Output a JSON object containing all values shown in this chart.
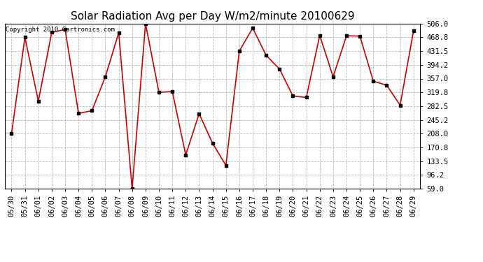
{
  "title": "Solar Radiation Avg per Day W/m2/minute 20100629",
  "copyright": "Copyright 2010 Cartronics.com",
  "dates": [
    "05/30",
    "05/31",
    "06/01",
    "06/02",
    "06/03",
    "06/04",
    "06/05",
    "06/06",
    "06/07",
    "06/08",
    "06/09",
    "06/10",
    "06/11",
    "06/12",
    "06/13",
    "06/14",
    "06/15",
    "06/16",
    "06/17",
    "06/18",
    "06/19",
    "06/20",
    "06/21",
    "06/22",
    "06/23",
    "06/24",
    "06/25",
    "06/26",
    "06/27",
    "06/28",
    "06/29"
  ],
  "values": [
    208.0,
    468.8,
    296.0,
    482.0,
    490.0,
    263.0,
    270.0,
    362.0,
    481.0,
    59.0,
    506.0,
    319.8,
    322.0,
    150.0,
    262.0,
    182.0,
    122.0,
    431.5,
    494.0,
    420.0,
    383.0,
    310.0,
    306.0,
    474.0,
    362.0,
    473.0,
    472.0,
    350.0,
    339.0,
    285.0,
    486.0
  ],
  "line_color": "#cc0000",
  "marker": "s",
  "marker_size": 3,
  "marker_color": "#000000",
  "bg_color": "#ffffff",
  "plot_bg_color": "#ffffff",
  "grid_color": "#bbbbbb",
  "grid_style": "--",
  "ylim": [
    59.0,
    506.0
  ],
  "yticks": [
    59.0,
    96.2,
    133.5,
    170.8,
    208.0,
    245.2,
    282.5,
    319.8,
    357.0,
    394.2,
    431.5,
    468.8,
    506.0
  ],
  "ytick_labels": [
    "59.0",
    "96.2",
    "133.5",
    "170.8",
    "208.0",
    "245.2",
    "282.5",
    "319.8",
    "357.0",
    "394.2",
    "431.5",
    "468.8",
    "506.0"
  ],
  "title_fontsize": 11,
  "copyright_fontsize": 6.5,
  "tick_fontsize": 7.5,
  "fig_width": 6.9,
  "fig_height": 3.75,
  "dpi": 100
}
